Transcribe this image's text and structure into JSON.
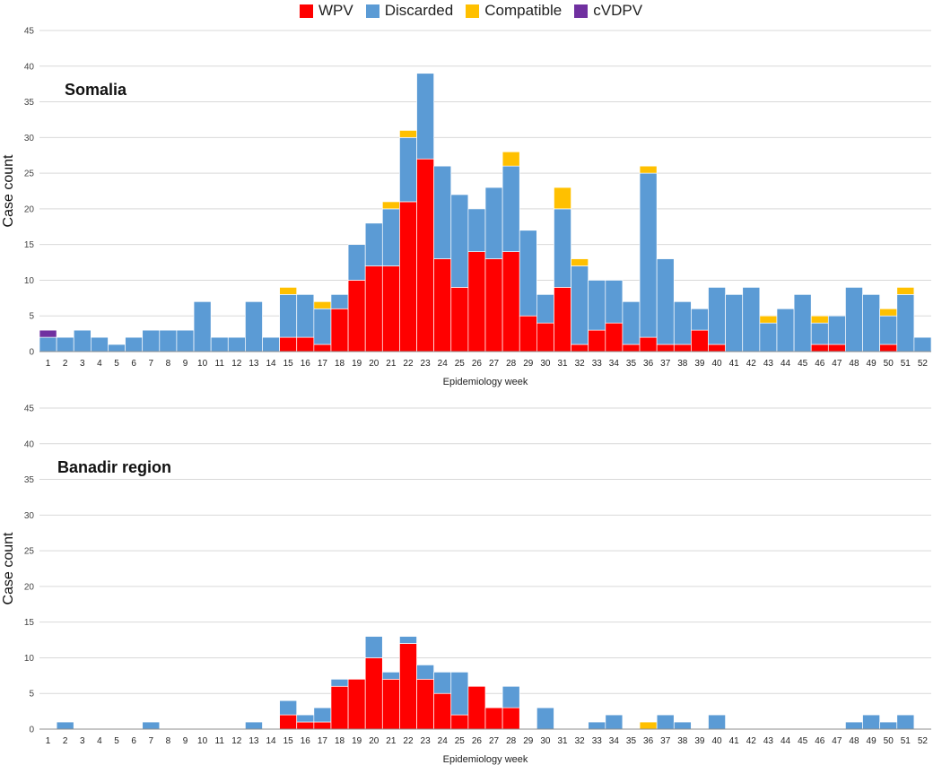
{
  "legend": [
    {
      "name": "WPV",
      "color": "#ff0000"
    },
    {
      "name": "Discarded",
      "color": "#5b9bd5"
    },
    {
      "name": "Compatible",
      "color": "#ffc000"
    },
    {
      "name": "cVDPV",
      "color": "#7030a0"
    }
  ],
  "chart_data": [
    {
      "type": "bar",
      "stacked": true,
      "title": "Somalia",
      "xlabel": "Epidemiology week",
      "ylabel": "Case count",
      "ylim": [
        0,
        45
      ],
      "yticks": [
        0,
        5,
        10,
        15,
        20,
        25,
        30,
        35,
        40,
        45
      ],
      "categories": [
        "1",
        "2",
        "3",
        "4",
        "5",
        "6",
        "7",
        "8",
        "9",
        "10",
        "11",
        "12",
        "13",
        "14",
        "15",
        "16",
        "17",
        "18",
        "19",
        "20",
        "21",
        "22",
        "23",
        "24",
        "25",
        "26",
        "27",
        "28",
        "29",
        "30",
        "31",
        "32",
        "33",
        "34",
        "35",
        "36",
        "37",
        "38",
        "39",
        "40",
        "41",
        "42",
        "43",
        "44",
        "45",
        "46",
        "47",
        "48",
        "49",
        "50",
        "51",
        "52"
      ],
      "series": [
        {
          "name": "WPV",
          "values": [
            0,
            0,
            0,
            0,
            0,
            0,
            0,
            0,
            0,
            0,
            0,
            0,
            0,
            0,
            2,
            2,
            1,
            6,
            10,
            12,
            12,
            21,
            27,
            13,
            9,
            14,
            13,
            14,
            5,
            4,
            9,
            1,
            3,
            4,
            1,
            2,
            1,
            1,
            3,
            1,
            0,
            0,
            0,
            0,
            0,
            1,
            1,
            0,
            0,
            1,
            0,
            0
          ]
        },
        {
          "name": "Discarded",
          "values": [
            2,
            2,
            3,
            2,
            1,
            2,
            3,
            3,
            3,
            7,
            2,
            2,
            7,
            2,
            6,
            6,
            5,
            2,
            5,
            6,
            8,
            9,
            12,
            13,
            13,
            6,
            10,
            12,
            12,
            4,
            11,
            11,
            7,
            6,
            6,
            23,
            12,
            6,
            3,
            8,
            8,
            9,
            4,
            6,
            8,
            3,
            4,
            9,
            8,
            4,
            8,
            2
          ]
        },
        {
          "name": "Compatible",
          "values": [
            0,
            0,
            0,
            0,
            0,
            0,
            0,
            0,
            0,
            0,
            0,
            0,
            0,
            0,
            1,
            0,
            1,
            0,
            0,
            0,
            1,
            1,
            0,
            0,
            0,
            0,
            0,
            2,
            0,
            0,
            3,
            1,
            0,
            0,
            0,
            1,
            0,
            0,
            0,
            0,
            0,
            0,
            1,
            0,
            0,
            1,
            0,
            0,
            0,
            1,
            1,
            0
          ]
        },
        {
          "name": "cVDPV",
          "values": [
            1,
            0,
            0,
            0,
            0,
            0,
            0,
            0,
            0,
            0,
            0,
            0,
            0,
            0,
            0,
            0,
            0,
            0,
            0,
            0,
            0,
            0,
            0,
            0,
            0,
            0,
            0,
            0,
            0,
            0,
            0,
            0,
            0,
            0,
            0,
            0,
            0,
            0,
            0,
            0,
            0,
            0,
            0,
            0,
            0,
            0,
            0,
            0,
            0,
            0,
            0,
            0
          ]
        }
      ]
    },
    {
      "type": "bar",
      "stacked": true,
      "title": "Banadir region",
      "xlabel": "Epidemiology week",
      "ylabel": "Case count",
      "ylim": [
        0,
        45
      ],
      "yticks": [
        0,
        5,
        10,
        15,
        20,
        25,
        30,
        35,
        40,
        45
      ],
      "categories": [
        "1",
        "2",
        "3",
        "4",
        "5",
        "6",
        "7",
        "8",
        "9",
        "10",
        "11",
        "12",
        "13",
        "14",
        "15",
        "16",
        "17",
        "18",
        "19",
        "20",
        "21",
        "22",
        "23",
        "24",
        "25",
        "26",
        "27",
        "28",
        "29",
        "30",
        "31",
        "32",
        "33",
        "34",
        "35",
        "36",
        "37",
        "38",
        "39",
        "40",
        "41",
        "42",
        "43",
        "44",
        "45",
        "46",
        "47",
        "48",
        "49",
        "50",
        "51",
        "52"
      ],
      "series": [
        {
          "name": "WPV",
          "values": [
            0,
            0,
            0,
            0,
            0,
            0,
            0,
            0,
            0,
            0,
            0,
            0,
            0,
            0,
            2,
            1,
            1,
            6,
            7,
            10,
            7,
            12,
            7,
            5,
            2,
            6,
            3,
            3,
            0,
            0,
            0,
            0,
            0,
            0,
            0,
            0,
            0,
            0,
            0,
            0,
            0,
            0,
            0,
            0,
            0,
            0,
            0,
            0,
            0,
            0,
            0,
            0
          ]
        },
        {
          "name": "Discarded",
          "values": [
            0,
            1,
            0,
            0,
            0,
            0,
            1,
            0,
            0,
            0,
            0,
            0,
            1,
            0,
            2,
            1,
            2,
            1,
            0,
            3,
            1,
            1,
            2,
            3,
            6,
            0,
            0,
            3,
            0,
            3,
            0,
            0,
            1,
            2,
            0,
            0,
            2,
            1,
            0,
            2,
            0,
            0,
            0,
            0,
            0,
            0,
            0,
            1,
            2,
            1,
            2,
            0
          ]
        },
        {
          "name": "Compatible",
          "values": [
            0,
            0,
            0,
            0,
            0,
            0,
            0,
            0,
            0,
            0,
            0,
            0,
            0,
            0,
            0,
            0,
            0,
            0,
            0,
            0,
            0,
            0,
            0,
            0,
            0,
            0,
            0,
            0,
            0,
            0,
            0,
            0,
            0,
            0,
            0,
            1,
            0,
            0,
            0,
            0,
            0,
            0,
            0,
            0,
            0,
            0,
            0,
            0,
            0,
            0,
            0,
            0
          ]
        },
        {
          "name": "cVDPV",
          "values": [
            0,
            0,
            0,
            0,
            0,
            0,
            0,
            0,
            0,
            0,
            0,
            0,
            0,
            0,
            0,
            0,
            0,
            0,
            0,
            0,
            0,
            0,
            0,
            0,
            0,
            0,
            0,
            0,
            0,
            0,
            0,
            0,
            0,
            0,
            0,
            0,
            0,
            0,
            0,
            0,
            0,
            0,
            0,
            0,
            0,
            0,
            0,
            0,
            0,
            0,
            0,
            0
          ]
        }
      ]
    }
  ]
}
